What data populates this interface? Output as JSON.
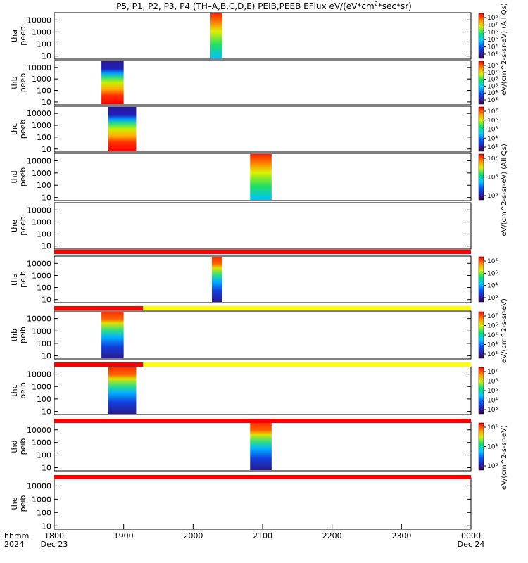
{
  "chart_data": {
    "type": "heatmap",
    "title_parts": [
      "P5, P1, P2, P3, P4 (TH–A,B,C,D,E) PEIB,PEEB EFlux eV/(eV*cm",
      "2",
      "*sec*sr)"
    ],
    "x_axis": {
      "unit_label": "hhmm",
      "year_label": "2024",
      "ticks": [
        "1800",
        "1900",
        "2000",
        "2100",
        "2200",
        "2300",
        "0000"
      ],
      "date_labels": [
        "Dec 23",
        "Dec 24"
      ],
      "range_hhmm": [
        "1800",
        "0000"
      ]
    },
    "y_ticks": [
      "10",
      "100",
      "1000",
      "10000"
    ],
    "y_scale": "log",
    "panels": [
      {
        "id": "tha-peeb",
        "label_top": "tha",
        "label_bottom": "peeb",
        "data": [
          {
            "start_hour": 20.25,
            "end_hour": 20.42
          }
        ],
        "colorbar": {
          "ticks": [
            "10³",
            "10⁴",
            "10⁵",
            "10⁶",
            "10⁷",
            "10⁸"
          ]
        }
      },
      {
        "id": "thb-peeb",
        "label_top": "thb",
        "label_bottom": "peeb",
        "data": [
          {
            "start_hour": 18.68,
            "end_hour": 19.0
          }
        ],
        "colorbar": {
          "ticks": [
            "10³",
            "10⁴",
            "10⁵",
            "10⁶",
            "10⁷",
            "10⁸"
          ]
        }
      },
      {
        "id": "thc-peeb",
        "label_top": "thc",
        "label_bottom": "peeb",
        "data": [
          {
            "start_hour": 18.78,
            "end_hour": 19.18
          }
        ],
        "colorbar": {
          "ticks": [
            "10³",
            "10⁴",
            "10⁵",
            "10⁶",
            "10⁷"
          ]
        }
      },
      {
        "id": "thd-peeb",
        "label_top": "thd",
        "label_bottom": "peeb",
        "data": [
          {
            "start_hour": 20.82,
            "end_hour": 21.13
          }
        ],
        "colorbar": {
          "ticks": [
            "10⁵",
            "10⁶",
            "10⁷"
          ]
        }
      },
      {
        "id": "the-peeb",
        "label_top": "the",
        "label_bottom": "peeb",
        "data": [],
        "colorbar": null
      },
      {
        "id": "tha-peib",
        "label_top": "tha",
        "label_bottom": "peib",
        "data": [
          {
            "start_hour": 20.27,
            "end_hour": 20.42
          }
        ],
        "colorbar": {
          "ticks": [
            "10³",
            "10⁴",
            "10⁵",
            "10⁶"
          ]
        }
      },
      {
        "id": "thb-peib",
        "label_top": "thb",
        "label_bottom": "peib",
        "data": [
          {
            "start_hour": 18.68,
            "end_hour": 19.0
          }
        ],
        "colorbar": {
          "ticks": [
            "10³",
            "10⁴",
            "10⁵",
            "10⁶",
            "10⁷"
          ]
        }
      },
      {
        "id": "thc-peib",
        "label_top": "thc",
        "label_bottom": "peib",
        "data": [
          {
            "start_hour": 18.78,
            "end_hour": 19.18
          }
        ],
        "colorbar": {
          "ticks": [
            "10³",
            "10⁴",
            "10⁵",
            "10⁶",
            "10⁷"
          ]
        }
      },
      {
        "id": "thd-peib",
        "label_top": "thd",
        "label_bottom": "peib",
        "data": [
          {
            "start_hour": 20.82,
            "end_hour": 21.13
          }
        ],
        "colorbar": {
          "ticks": [
            "10³",
            "10⁴",
            "10⁵"
          ]
        }
      },
      {
        "id": "the-peib",
        "label_top": "the",
        "label_bottom": "peib",
        "data": [],
        "colorbar": null
      }
    ],
    "colorbar_titles": [
      "eV/(cm^2-s-sr-eV) (All Qs)",
      "eV/(cm^2-s-sr-eV) (All Qs)",
      "eV/(cm^2-s-sr-eV)",
      "eV/(cm^2-s-sr-eV)"
    ],
    "mode_bars": [
      {
        "after_panel": 4,
        "segments": [
          {
            "start_hour": 18.0,
            "end_hour": 24.0,
            "color": "red"
          }
        ]
      },
      {
        "after_panel": 5,
        "segments": [
          {
            "start_hour": 18.0,
            "end_hour": 19.28,
            "color": "red"
          },
          {
            "start_hour": 19.28,
            "end_hour": 24.0,
            "color": "yellow"
          }
        ]
      },
      {
        "after_panel": 6,
        "segments": [
          {
            "start_hour": 18.0,
            "end_hour": 19.28,
            "color": "red"
          },
          {
            "start_hour": 19.28,
            "end_hour": 24.0,
            "color": "yellow"
          }
        ]
      },
      {
        "after_panel": 7,
        "segments": [
          {
            "start_hour": 18.0,
            "end_hour": 24.0,
            "color": "red"
          }
        ]
      },
      {
        "after_panel": 8,
        "segments": [
          {
            "start_hour": 18.0,
            "end_hour": 24.0,
            "color": "red"
          }
        ]
      }
    ],
    "colors": {
      "red": "#ff0000",
      "yellow": "#ffff00"
    }
  }
}
